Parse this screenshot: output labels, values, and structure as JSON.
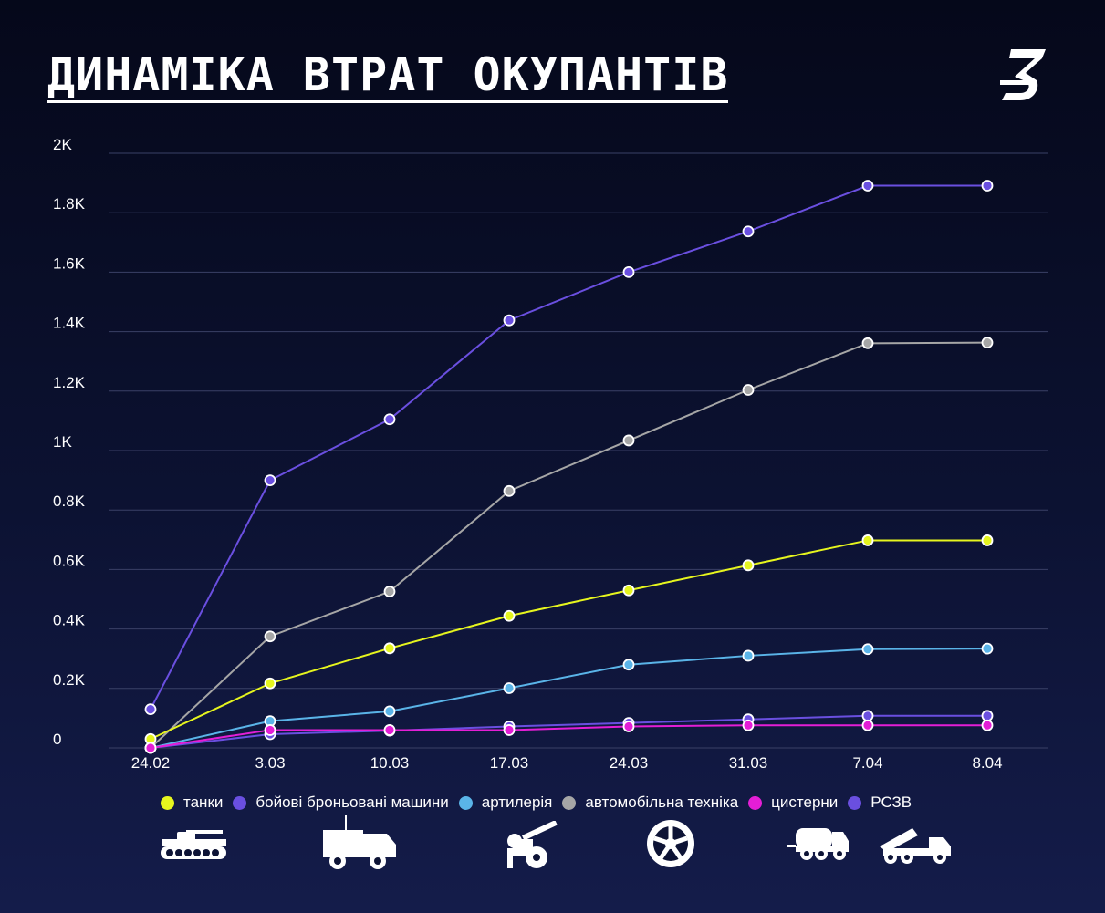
{
  "title": "ДИНАМІКА ВТРАТ ОКУПАНТІВ",
  "logo_icon": "z-logo-icon",
  "colors": {
    "background": "#0a0f2c",
    "grid": "#3a4066",
    "tanks": "#e6f51e",
    "bbm": "#6a4fe0",
    "artillery": "#5ab4e8",
    "vehicles": "#a6a6a6",
    "tankers": "#e41ed6",
    "rszv": "#6a4fe0"
  },
  "legend": [
    {
      "key": "tanks",
      "label": "танки",
      "icon": "tank-icon"
    },
    {
      "key": "bbm",
      "label": "бойові броньовані машини",
      "icon": "armored-vehicle-icon"
    },
    {
      "key": "artillery",
      "label": "артилерія",
      "icon": "artillery-icon"
    },
    {
      "key": "vehicles",
      "label": "автомобільна техніка",
      "icon": "wheel-icon"
    },
    {
      "key": "tankers",
      "label": "цистерни",
      "icon": "fuel-tanker-icon"
    },
    {
      "key": "rszv",
      "label": "РСЗВ",
      "icon": "rocket-launcher-icon"
    }
  ],
  "chart_data": {
    "type": "line",
    "categories": [
      "24.02",
      "3.03",
      "10.03",
      "17.03",
      "24.03",
      "31.03",
      "7.04",
      "8.04"
    ],
    "ylim": [
      0,
      2000
    ],
    "yticks": [
      0,
      200,
      400,
      600,
      800,
      1000,
      1200,
      1400,
      1600,
      1800,
      2000
    ],
    "ytick_labels": [
      "0",
      "0.2K",
      "0.4K",
      "0.6K",
      "0.8K",
      "1K",
      "1.2K",
      "1.4K",
      "1.6K",
      "1.8K",
      "2K"
    ],
    "grid": true,
    "legend_position": "bottom",
    "series": [
      {
        "key": "bbm",
        "name": "бойові броньовані машини",
        "values": [
          130,
          900,
          1105,
          1438,
          1600,
          1737,
          1891,
          1891
        ]
      },
      {
        "key": "vehicles",
        "name": "автомобільна техніка",
        "values": [
          0,
          375,
          526,
          864,
          1034,
          1204,
          1361,
          1363
        ]
      },
      {
        "key": "tanks",
        "name": "танки",
        "values": [
          30,
          217,
          335,
          444,
          530,
          614,
          698,
          698
        ]
      },
      {
        "key": "artillery",
        "name": "артилерія",
        "values": [
          0,
          90,
          123,
          201,
          280,
          310,
          332,
          334
        ]
      },
      {
        "key": "rszv",
        "name": "РСЗВ",
        "values": [
          0,
          46,
          58,
          72,
          84,
          96,
          108,
          108
        ]
      },
      {
        "key": "tankers",
        "name": "цистерни",
        "values": [
          0,
          60,
          60,
          60,
          72,
          76,
          76,
          76
        ]
      }
    ]
  }
}
